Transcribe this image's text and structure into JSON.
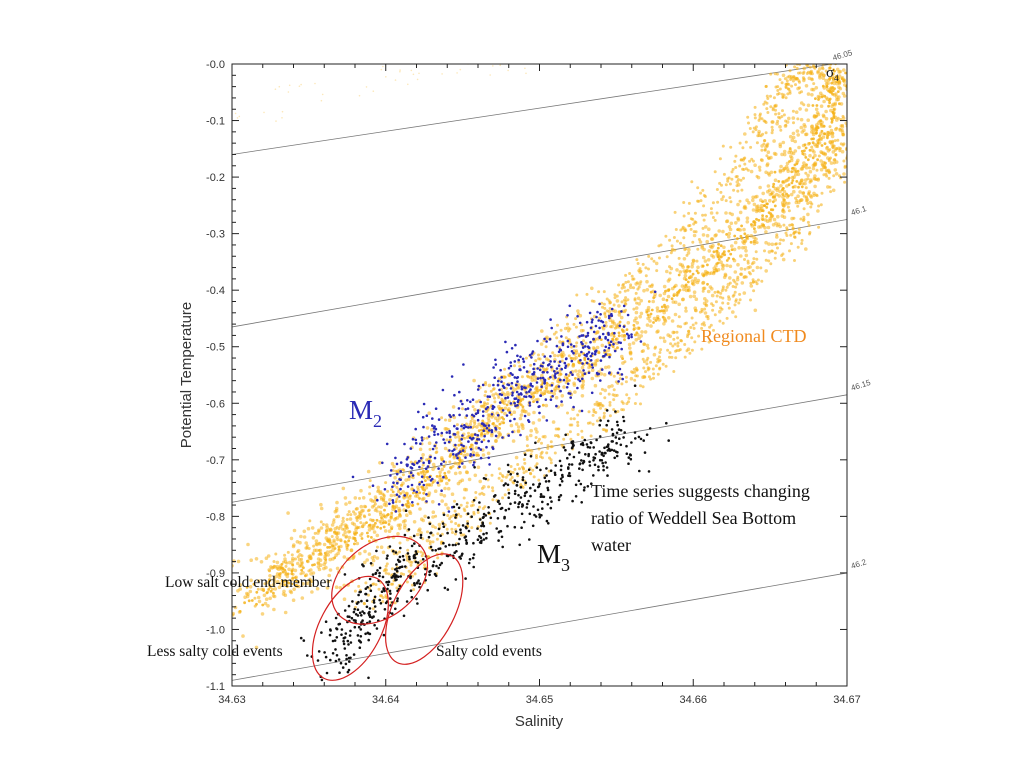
{
  "chart_data": {
    "type": "scatter",
    "xlabel": "Salinity",
    "ylabel": "Potential Temperature",
    "xlim": [
      34.63,
      34.67
    ],
    "ylim": [
      -1.1,
      0.0
    ],
    "x_ticks": [
      34.63,
      34.64,
      34.65,
      34.66,
      34.67
    ],
    "x_tick_labels": [
      "34.63",
      "34.64",
      "34.65",
      "34.66",
      "34.67"
    ],
    "y_ticks": [
      0.0,
      -0.1,
      -0.2,
      -0.3,
      -0.4,
      -0.5,
      -0.6,
      -0.7,
      -0.8,
      -0.9,
      -1.0,
      -1.1
    ],
    "y_tick_labels": [
      "-0.0",
      "-0.1",
      "-0.2",
      "-0.3",
      "-0.4",
      "-0.5",
      "-0.6",
      "-0.7",
      "-0.8",
      "-0.9",
      "-1.0",
      "-1.1"
    ],
    "grid": false,
    "density_symbol": "σ",
    "density_subscript": "4",
    "isopycnals": [
      {
        "label": "46.05",
        "start": [
          34.63,
          -0.16
        ],
        "end": [
          34.6688,
          -0.001
        ]
      },
      {
        "label": "46.1",
        "start": [
          34.63,
          -0.465
        ],
        "end": [
          34.67,
          -0.275
        ]
      },
      {
        "label": "46.15",
        "start": [
          34.63,
          -0.775
        ],
        "end": [
          34.67,
          -0.585
        ]
      },
      {
        "label": "46.2",
        "start": [
          34.63,
          -1.09
        ],
        "end": [
          34.67,
          -0.9
        ]
      }
    ],
    "series": [
      {
        "name": "Regional CTD",
        "color": "#f5b31a",
        "path": [
          [
            34.6305,
            -0.96
          ],
          [
            34.6345,
            -0.89
          ],
          [
            34.6375,
            -0.845
          ],
          [
            34.64,
            -0.81
          ],
          [
            34.6425,
            -0.75
          ],
          [
            34.645,
            -0.69
          ],
          [
            34.648,
            -0.615
          ],
          [
            34.651,
            -0.565
          ],
          [
            34.654,
            -0.51
          ],
          [
            34.657,
            -0.445
          ],
          [
            34.66,
            -0.38
          ],
          [
            34.6625,
            -0.32
          ],
          [
            34.665,
            -0.255
          ],
          [
            34.6665,
            -0.195
          ],
          [
            34.668,
            -0.13
          ],
          [
            34.669,
            -0.06
          ],
          [
            34.6695,
            -0.01
          ]
        ],
        "upper_edge": [
          [
            34.632,
            -0.93
          ],
          [
            34.637,
            -0.83
          ],
          [
            34.642,
            -0.72
          ],
          [
            34.647,
            -0.59
          ],
          [
            34.652,
            -0.49
          ],
          [
            34.657,
            -0.37
          ],
          [
            34.661,
            -0.26
          ],
          [
            34.664,
            -0.14
          ],
          [
            34.666,
            -0.04
          ],
          [
            34.6675,
            0.0
          ]
        ],
        "lower_edge": [
          [
            34.639,
            -0.95
          ],
          [
            34.6435,
            -0.84
          ],
          [
            34.6485,
            -0.725
          ],
          [
            34.6535,
            -0.62
          ],
          [
            34.658,
            -0.52
          ],
          [
            34.662,
            -0.42
          ],
          [
            34.666,
            -0.31
          ],
          [
            34.669,
            -0.18
          ],
          [
            34.67,
            -0.1
          ]
        ],
        "sparse_warm_tail": [
          [
            34.6308,
            -0.09
          ],
          [
            34.6355,
            -0.045
          ],
          [
            34.641,
            -0.018
          ],
          [
            34.6465,
            -0.005
          ]
        ]
      },
      {
        "name": "M2",
        "color": "#2a2ab5",
        "center_path": [
          [
            34.6405,
            -0.745
          ],
          [
            34.6425,
            -0.7
          ],
          [
            34.6445,
            -0.655
          ],
          [
            34.6465,
            -0.615
          ],
          [
            34.6485,
            -0.58
          ],
          [
            34.65,
            -0.555
          ],
          [
            34.652,
            -0.525
          ],
          [
            34.654,
            -0.495
          ],
          [
            34.6555,
            -0.475
          ]
        ],
        "spread": [
          0.0009,
          0.035
        ]
      },
      {
        "name": "M3",
        "color": "#111111",
        "center_path": [
          [
            34.6365,
            -1.065
          ],
          [
            34.638,
            -0.995
          ],
          [
            34.6395,
            -0.935
          ],
          [
            34.641,
            -0.89
          ],
          [
            34.6435,
            -0.855
          ],
          [
            34.6465,
            -0.81
          ],
          [
            34.649,
            -0.765
          ],
          [
            34.6515,
            -0.72
          ],
          [
            34.654,
            -0.685
          ],
          [
            34.6565,
            -0.645
          ]
        ],
        "spread": [
          0.0009,
          0.03
        ]
      }
    ],
    "ellipses": [
      {
        "label": "Low salt cold end-member",
        "center": [
          34.6396,
          -0.913
        ],
        "rx": 0.00348,
        "ry": 0.065,
        "angle": -38
      },
      {
        "label": "Less salty cold events",
        "center": [
          34.6377,
          -0.998
        ],
        "rx": 0.002,
        "ry": 0.1,
        "angle": 28
      },
      {
        "label": "Salty cold events",
        "center": [
          34.6425,
          -0.964
        ],
        "rx": 0.002,
        "ry": 0.106,
        "angle": 27
      }
    ],
    "annotations": [
      {
        "text": "Regional CTD",
        "color": "#f08a1e"
      },
      {
        "text": "M",
        "sub": "2",
        "color": "#2a2ab5"
      },
      {
        "text": "M",
        "sub": "3",
        "color": "#111111"
      },
      {
        "text": "Time series suggests changing ratio of Weddell Sea Bottom water",
        "lines": [
          "Time series suggests changing",
          "ratio of Weddell Sea Bottom",
          "water"
        ],
        "color": "#111111"
      },
      {
        "text": "Low salt cold end-member",
        "color": "#111111"
      },
      {
        "text": "Less salty cold events",
        "color": "#111111"
      },
      {
        "text": "Salty cold events",
        "color": "#111111"
      }
    ]
  }
}
